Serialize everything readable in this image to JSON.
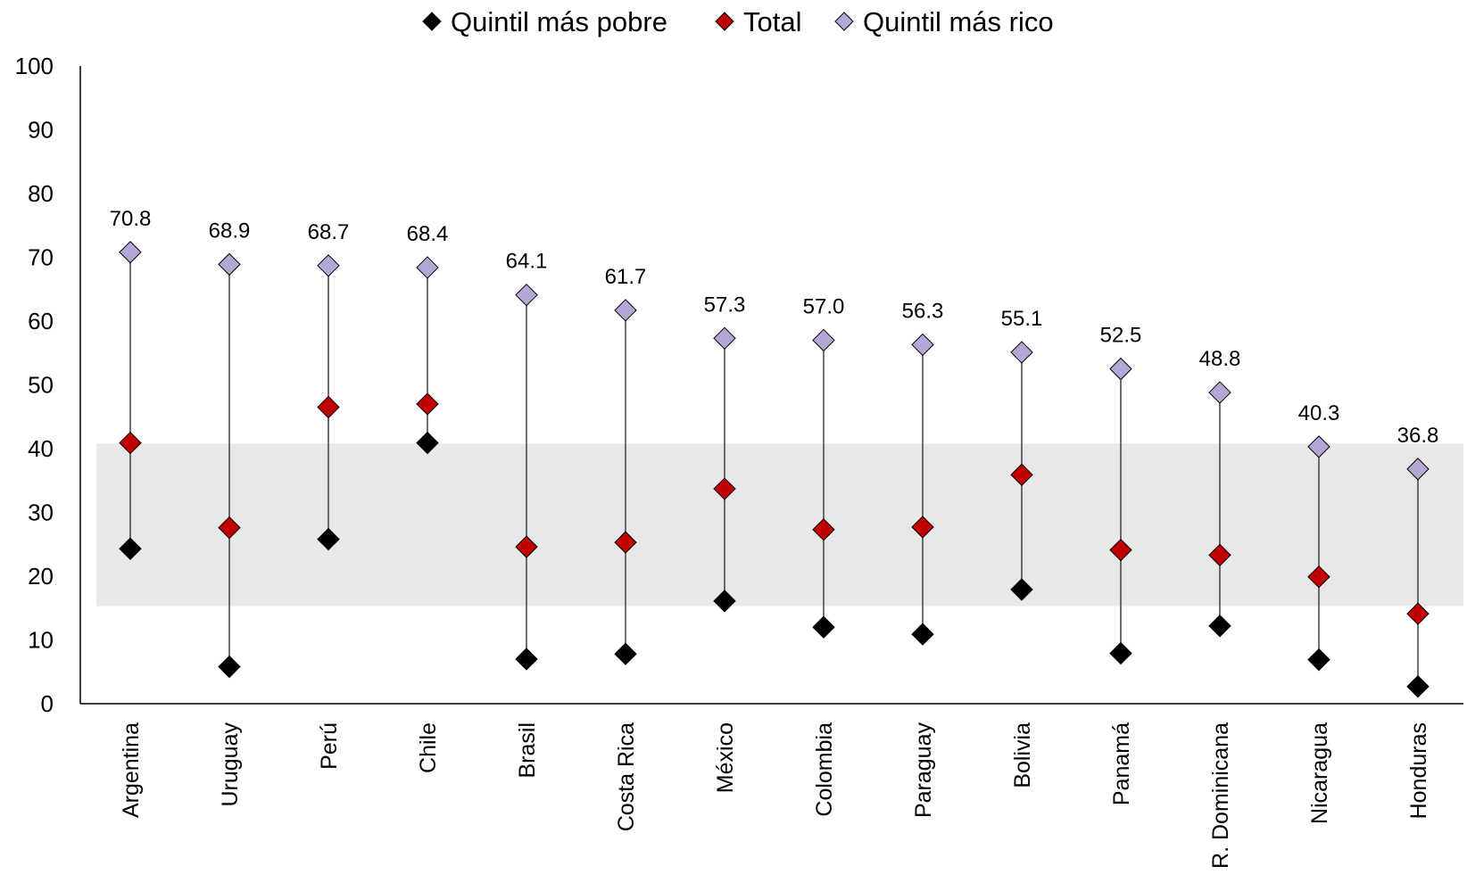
{
  "chart_data": {
    "type": "scatter",
    "categories": [
      "Argentina",
      "Uruguay",
      "Perú",
      "Chile",
      "Brasil",
      "Costa Rica",
      "México",
      "Colombia",
      "Paraguay",
      "Bolivia",
      "Panamá",
      "R. Dominicana",
      "Nicaragua",
      "Honduras"
    ],
    "series": [
      {
        "name": "Quintil más pobre",
        "color": "#000000",
        "values": [
          24.3,
          5.8,
          25.8,
          40.9,
          7.0,
          7.8,
          16.1,
          12.0,
          10.9,
          17.9,
          7.9,
          12.2,
          6.9,
          2.7
        ]
      },
      {
        "name": "Total",
        "color": "#c00000",
        "values": [
          40.9,
          27.6,
          46.5,
          47.0,
          24.6,
          25.3,
          33.7,
          27.3,
          27.7,
          35.9,
          24.1,
          23.3,
          19.9,
          14.1
        ]
      },
      {
        "name": "Quintil más rico",
        "color": "#b4a7d6",
        "values": [
          70.8,
          68.9,
          68.7,
          68.4,
          64.1,
          61.7,
          57.3,
          57.0,
          56.3,
          55.1,
          52.5,
          48.8,
          40.3,
          36.8
        ]
      }
    ],
    "data_labels": [
      "70.8",
      "68.9",
      "68.7",
      "68.4",
      "64.1",
      "61.7",
      "57.3",
      "57.0",
      "56.3",
      "55.1",
      "52.5",
      "48.8",
      "40.3",
      "36.8"
    ],
    "band": {
      "from": 15.3,
      "to": 40.8,
      "color": "#e8e8e8"
    },
    "ylim": [
      0,
      100
    ],
    "yticks": [
      "0",
      "10",
      "20",
      "30",
      "40",
      "50",
      "60",
      "70",
      "80",
      "90",
      "100"
    ],
    "title": "",
    "xlabel": "",
    "ylabel": "",
    "legend": "top",
    "grid": false
  }
}
